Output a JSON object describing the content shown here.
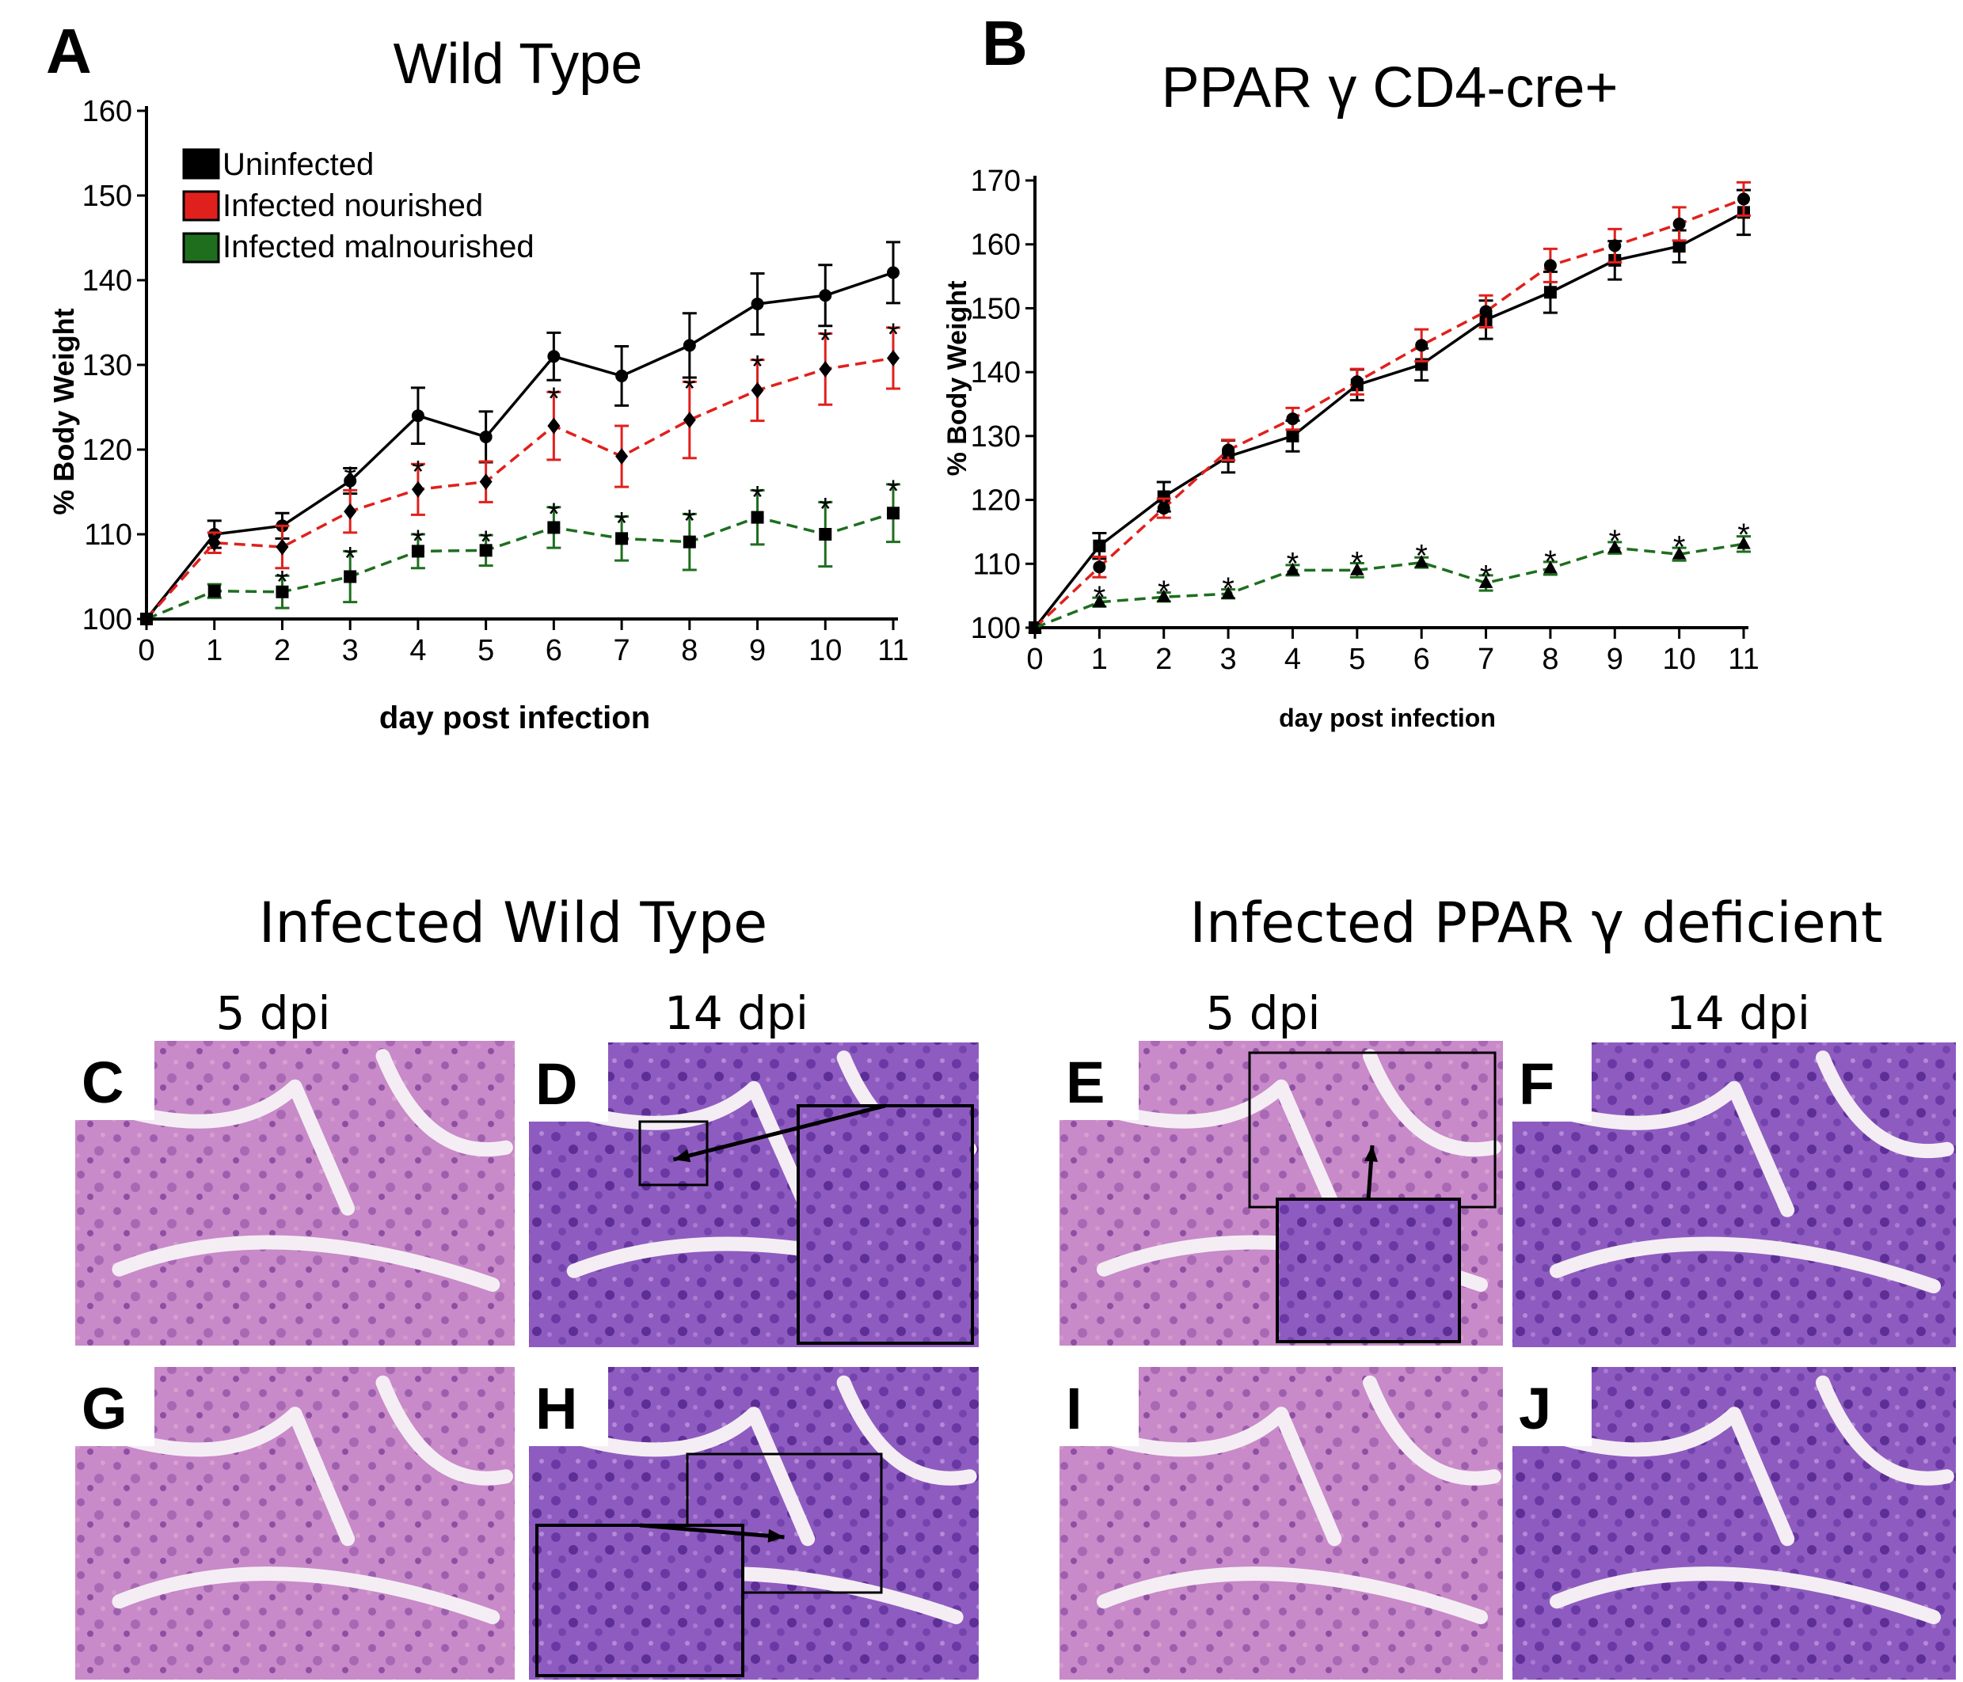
{
  "panel_letters": {
    "a": "A",
    "b": "B"
  },
  "colors": {
    "uninfected": "#000000",
    "nourished": "#e0201c",
    "malnourished": "#1e6e1e",
    "tissue_base": "#b97cc0",
    "tissue_dark": "#6a3a9a",
    "lumen": "#f4eef4"
  },
  "chart_data": [
    {
      "type": "line",
      "panel": "A",
      "title": "Wild Type",
      "xlabel": "day post infection",
      "ylabel": "% Body Weight",
      "x": [
        0,
        1,
        2,
        3,
        4,
        5,
        6,
        7,
        8,
        9,
        10,
        11
      ],
      "xticks": [
        "0",
        "1",
        "2",
        "3",
        "4",
        "5",
        "6",
        "7",
        "8",
        "9",
        "10",
        "11"
      ],
      "ylim": [
        100,
        160
      ],
      "yticks": [
        "100",
        "110",
        "120",
        "130",
        "140",
        "150",
        "160"
      ],
      "legend": [
        "Uninfected",
        "Infected nourished",
        "Infected malnourished"
      ],
      "legend_position": "top-left",
      "series": [
        {
          "name": "Uninfected",
          "marker": "circle",
          "dashed": false,
          "values": [
            100,
            110,
            111,
            116.3,
            124,
            121.5,
            131,
            128.7,
            132.3,
            137.2,
            138.2,
            140.9
          ],
          "errors": [
            0,
            1.6,
            1.5,
            1.5,
            3.3,
            3.0,
            2.8,
            3.5,
            3.8,
            3.6,
            3.6,
            3.6
          ]
        },
        {
          "name": "Infected nourished",
          "marker": "diamond",
          "dashed": true,
          "values": [
            100,
            109,
            108.5,
            112.7,
            115.3,
            116.2,
            122.8,
            119.2,
            123.5,
            127,
            129.5,
            130.8
          ],
          "errors": [
            0,
            1.2,
            2.5,
            2.5,
            3.0,
            2.4,
            4.0,
            3.6,
            4.5,
            3.6,
            4.2,
            3.6
          ]
        },
        {
          "name": "Infected malnourished",
          "marker": "square",
          "dashed": true,
          "values": [
            100,
            103.3,
            103.2,
            105,
            108,
            108.1,
            110.8,
            109.5,
            109.1,
            112,
            110,
            112.5
          ],
          "errors": [
            0,
            0.8,
            1.9,
            3.0,
            2.0,
            1.8,
            2.4,
            2.6,
            3.3,
            3.2,
            3.8,
            3.4
          ]
        }
      ],
      "asterisks": [
        {
          "x": 2,
          "y": 105.2
        },
        {
          "x": 3,
          "y": 117.5
        },
        {
          "x": 4,
          "y": 118.2
        },
        {
          "x": 6,
          "y": 126.8
        },
        {
          "x": 8,
          "y": 128
        },
        {
          "x": 9,
          "y": 130.6
        },
        {
          "x": 10,
          "y": 133.7
        },
        {
          "x": 11,
          "y": 134.4
        },
        {
          "x": 3,
          "y": 108
        },
        {
          "x": 4,
          "y": 110
        },
        {
          "x": 5,
          "y": 109.9
        },
        {
          "x": 6,
          "y": 113.2
        },
        {
          "x": 7,
          "y": 112.1
        },
        {
          "x": 8,
          "y": 112.4
        },
        {
          "x": 9,
          "y": 115.2
        },
        {
          "x": 10,
          "y": 113.8
        },
        {
          "x": 11,
          "y": 115.9
        }
      ]
    },
    {
      "type": "line",
      "panel": "B",
      "title": "PPAR γ CD4-cre+",
      "xlabel": "day post infection",
      "ylabel": "% Body Weight",
      "x": [
        0,
        1,
        2,
        3,
        4,
        5,
        6,
        7,
        8,
        9,
        10,
        11
      ],
      "xticks": [
        "0",
        "1",
        "2",
        "3",
        "4",
        "5",
        "6",
        "7",
        "8",
        "9",
        "10",
        "11"
      ],
      "ylim": [
        100,
        170
      ],
      "yticks": [
        "100",
        "110",
        "120",
        "130",
        "140",
        "150",
        "160",
        "170"
      ],
      "series": [
        {
          "marker": "square",
          "color_key": "uninfected",
          "dashed": false,
          "values": [
            100,
            112.8,
            120.5,
            126.8,
            130,
            138,
            141.2,
            148.2,
            152.5,
            157.5,
            159.7,
            165
          ],
          "errors": [
            0,
            2.0,
            2.3,
            2.5,
            2.4,
            2.4,
            2.5,
            3.0,
            3.2,
            3.0,
            2.5,
            3.5
          ]
        },
        {
          "marker": "circle",
          "color_key": "nourished",
          "dashed": true,
          "values": [
            100,
            109.5,
            118.7,
            127.8,
            132.7,
            138.5,
            144.2,
            149.5,
            156.7,
            159.8,
            163.2,
            167.1
          ],
          "errors": [
            0,
            1.6,
            1.5,
            1.6,
            1.7,
            2.0,
            2.5,
            2.5,
            2.6,
            2.6,
            2.6,
            2.6
          ]
        },
        {
          "marker": "triangle",
          "color_key": "malnourished",
          "dashed": true,
          "values": [
            100,
            104,
            104.8,
            105.3,
            109,
            109,
            110.2,
            107,
            109.3,
            112.5,
            111.5,
            113.1
          ],
          "errors": [
            0,
            0.7,
            0.7,
            0.7,
            0.8,
            1.1,
            0.8,
            1.2,
            1.0,
            0.9,
            1.0,
            1.2
          ]
        }
      ],
      "asterisks": [
        {
          "x": 1,
          "y": 105.8
        },
        {
          "x": 2,
          "y": 106.7
        },
        {
          "x": 3,
          "y": 107.2
        },
        {
          "x": 4,
          "y": 111.1
        },
        {
          "x": 5,
          "y": 111.2
        },
        {
          "x": 6,
          "y": 112.3
        },
        {
          "x": 7,
          "y": 109.1
        },
        {
          "x": 8,
          "y": 111.4
        },
        {
          "x": 9,
          "y": 114.6
        },
        {
          "x": 10,
          "y": 113.7
        },
        {
          "x": 11,
          "y": 115.6
        }
      ]
    }
  ],
  "asterisk_symbol": "*",
  "histology": {
    "left_heading": "Infected Wild Type",
    "right_heading": "Infected PPAR γ deficient",
    "sub_labels": [
      "5 dpi",
      "14 dpi",
      "5 dpi",
      "14 dpi"
    ],
    "panels": [
      {
        "letter": "C",
        "inset": false,
        "tone": "pink"
      },
      {
        "letter": "D",
        "inset": true,
        "tone": "purple"
      },
      {
        "letter": "E",
        "inset": true,
        "tone": "pink"
      },
      {
        "letter": "F",
        "inset": false,
        "tone": "purple"
      },
      {
        "letter": "G",
        "inset": false,
        "tone": "pink"
      },
      {
        "letter": "H",
        "inset": true,
        "tone": "purple"
      },
      {
        "letter": "I",
        "inset": false,
        "tone": "pink"
      },
      {
        "letter": "J",
        "inset": false,
        "tone": "purple"
      }
    ]
  }
}
